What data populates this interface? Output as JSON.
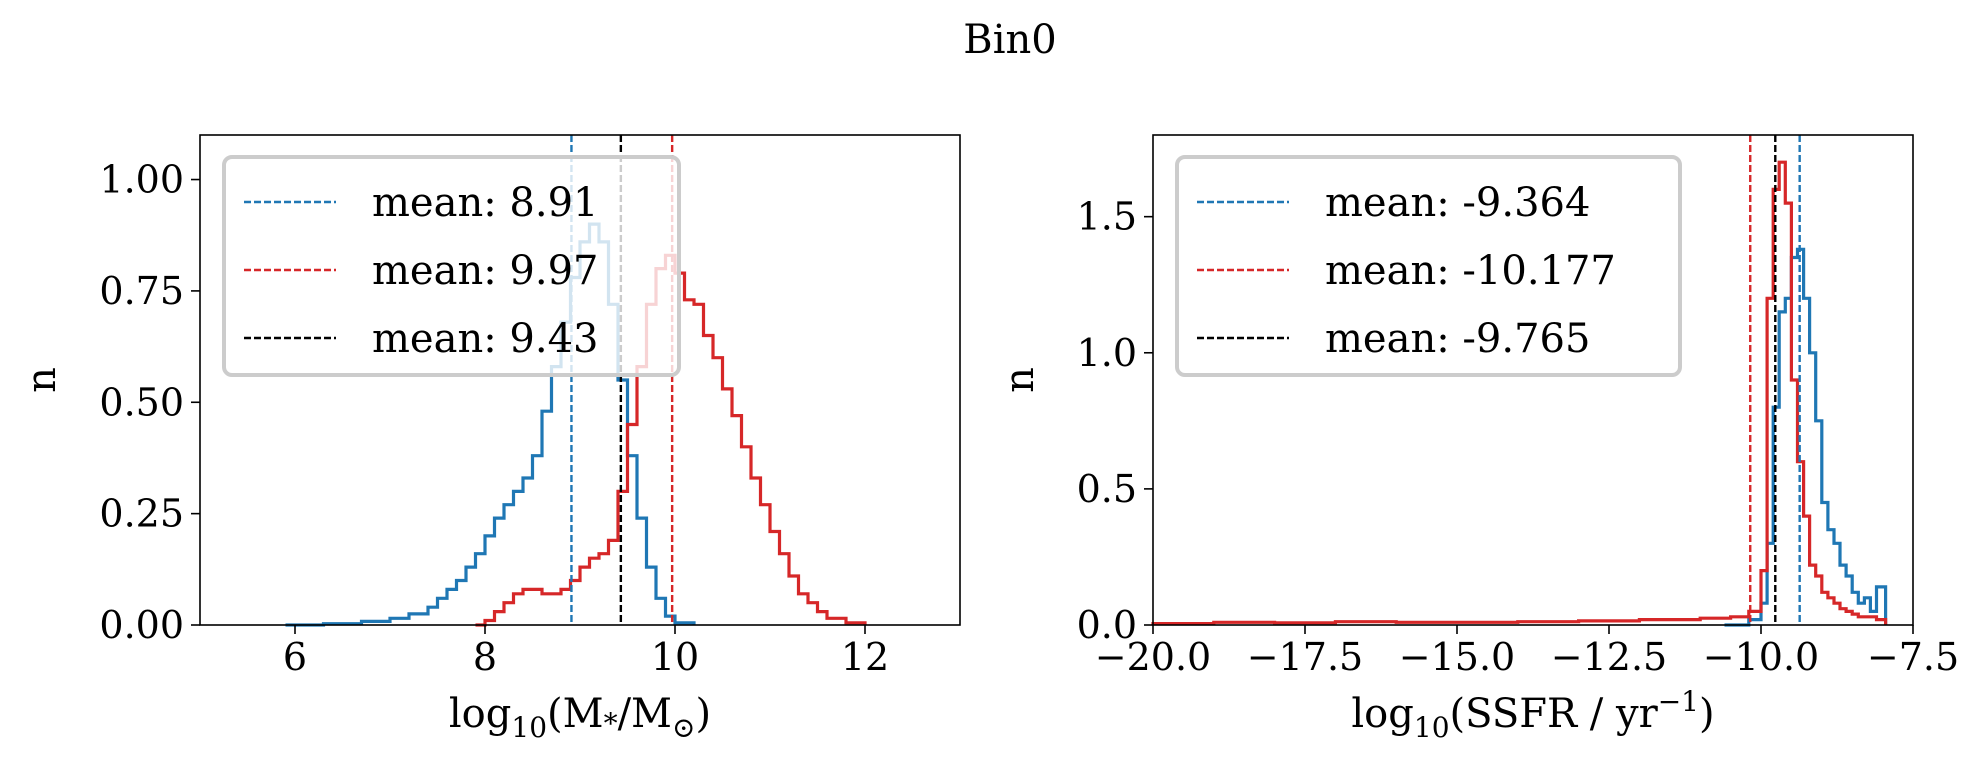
{
  "title": "Bin0",
  "chart_data": [
    {
      "type": "histogram",
      "xlabel": {
        "prefix": "log",
        "sub": "10",
        "body": "(M",
        "sub2": "*",
        "mid": "/M",
        "sub3": "⊙",
        "end": ")"
      },
      "ylabel": "n",
      "xlim": [
        5,
        13
      ],
      "ylim": [
        0,
        1.1
      ],
      "xticks": [
        {
          "v": 6,
          "label": "6"
        },
        {
          "v": 8,
          "label": "8"
        },
        {
          "v": 10,
          "label": "10"
        },
        {
          "v": 12,
          "label": "12"
        }
      ],
      "yticks": [
        {
          "v": 0,
          "label": "0.00"
        },
        {
          "v": 0.25,
          "label": "0.25"
        },
        {
          "v": 0.5,
          "label": "0.50"
        },
        {
          "v": 0.75,
          "label": "0.75"
        },
        {
          "v": 1.0,
          "label": "1.00"
        }
      ],
      "grid": false,
      "legend_position": "upper-left",
      "series": [
        {
          "color": "#1f77b4",
          "x": [
            5.9,
            6.3,
            6.7,
            7.0,
            7.2,
            7.4,
            7.5,
            7.6,
            7.7,
            7.8,
            7.9,
            8.0,
            8.1,
            8.2,
            8.3,
            8.4,
            8.5,
            8.6,
            8.7,
            8.8,
            8.9,
            9.0,
            9.1,
            9.2,
            9.3,
            9.4,
            9.5,
            9.6,
            9.7,
            9.8,
            9.9,
            10.0,
            10.2
          ],
          "y": [
            0.0,
            0.003,
            0.008,
            0.015,
            0.025,
            0.04,
            0.06,
            0.08,
            0.1,
            0.13,
            0.16,
            0.2,
            0.24,
            0.27,
            0.3,
            0.33,
            0.38,
            0.48,
            0.58,
            0.68,
            0.78,
            0.86,
            0.9,
            0.86,
            0.72,
            0.55,
            0.38,
            0.24,
            0.13,
            0.06,
            0.02,
            0.005,
            0.0
          ]
        },
        {
          "color": "#d62728",
          "x": [
            7.9,
            8.0,
            8.1,
            8.2,
            8.3,
            8.4,
            8.5,
            8.6,
            8.7,
            8.8,
            8.9,
            9.0,
            9.1,
            9.2,
            9.3,
            9.4,
            9.5,
            9.6,
            9.7,
            9.8,
            9.9,
            10.0,
            10.1,
            10.2,
            10.3,
            10.4,
            10.5,
            10.6,
            10.7,
            10.8,
            10.9,
            11.0,
            11.1,
            11.2,
            11.3,
            11.4,
            11.5,
            11.6,
            11.8,
            12.0
          ],
          "y": [
            0.0,
            0.01,
            0.03,
            0.05,
            0.07,
            0.08,
            0.08,
            0.07,
            0.07,
            0.08,
            0.1,
            0.13,
            0.15,
            0.16,
            0.19,
            0.3,
            0.45,
            0.58,
            0.72,
            0.8,
            0.83,
            0.79,
            0.73,
            0.72,
            0.65,
            0.6,
            0.53,
            0.47,
            0.4,
            0.33,
            0.27,
            0.21,
            0.16,
            0.11,
            0.07,
            0.05,
            0.03,
            0.015,
            0.005,
            0.0
          ]
        }
      ],
      "vlines": [
        {
          "x": 8.91,
          "color": "#1f77b4",
          "label": "mean: 8.91"
        },
        {
          "x": 9.97,
          "color": "#d62728",
          "label": "mean: 9.97"
        },
        {
          "x": 9.43,
          "color": "#000000",
          "label": "mean: 9.43"
        }
      ]
    },
    {
      "type": "histogram",
      "xlabel": {
        "prefix": "log",
        "sub": "10",
        "body": "(SSFR / yr",
        "sup": "−1",
        "end": ")"
      },
      "ylabel": "n",
      "xlim": [
        -20,
        -7.5
      ],
      "ylim": [
        0,
        1.8
      ],
      "xticks": [
        {
          "v": -20,
          "label": "−20.0"
        },
        {
          "v": -17.5,
          "label": "−17.5"
        },
        {
          "v": -15,
          "label": "−15.0"
        },
        {
          "v": -12.5,
          "label": "−12.5"
        },
        {
          "v": -10,
          "label": "−10.0"
        },
        {
          "v": -7.5,
          "label": "−7.5"
        }
      ],
      "yticks": [
        {
          "v": 0,
          "label": "0.0"
        },
        {
          "v": 0.5,
          "label": "0.5"
        },
        {
          "v": 1.0,
          "label": "1.0"
        },
        {
          "v": 1.5,
          "label": "1.5"
        }
      ],
      "grid": false,
      "legend_position": "upper-left",
      "series": [
        {
          "color": "#1f77b4",
          "x": [
            -10.6,
            -10.2,
            -10.0,
            -9.9,
            -9.8,
            -9.7,
            -9.6,
            -9.5,
            -9.4,
            -9.3,
            -9.2,
            -9.1,
            -9.0,
            -8.9,
            -8.8,
            -8.7,
            -8.6,
            -8.5,
            -8.4,
            -8.3,
            -8.2,
            -8.1,
            -7.95
          ],
          "y": [
            0.0,
            0.02,
            0.08,
            0.3,
            0.8,
            1.15,
            1.2,
            1.35,
            1.38,
            1.2,
            1.0,
            0.75,
            0.45,
            0.35,
            0.3,
            0.22,
            0.18,
            0.12,
            0.08,
            0.1,
            0.05,
            0.14,
            0.0
          ]
        },
        {
          "color": "#d62728",
          "x": [
            -20.0,
            -19.0,
            -18.0,
            -17.0,
            -16.0,
            -15.0,
            -14.0,
            -13.0,
            -12.0,
            -11.0,
            -10.5,
            -10.2,
            -10.0,
            -9.9,
            -9.8,
            -9.7,
            -9.6,
            -9.5,
            -9.4,
            -9.3,
            -9.2,
            -9.1,
            -9.0,
            -8.9,
            -8.8,
            -8.7,
            -8.6,
            -8.5,
            -8.4,
            -8.3,
            -8.2,
            -8.1,
            -7.95
          ],
          "y": [
            0.005,
            0.01,
            0.008,
            0.012,
            0.01,
            0.01,
            0.012,
            0.015,
            0.02,
            0.025,
            0.03,
            0.05,
            0.2,
            1.2,
            1.6,
            1.7,
            1.55,
            0.9,
            0.6,
            0.4,
            0.22,
            0.18,
            0.12,
            0.1,
            0.08,
            0.06,
            0.05,
            0.04,
            0.03,
            0.03,
            0.03,
            0.02,
            0.0
          ]
        }
      ],
      "vlines": [
        {
          "x": -9.364,
          "color": "#1f77b4",
          "label": "mean: -9.364"
        },
        {
          "x": -10.177,
          "color": "#d62728",
          "label": "mean: -10.177"
        },
        {
          "x": -9.765,
          "color": "#000000",
          "label": "mean: -9.765"
        }
      ]
    }
  ]
}
